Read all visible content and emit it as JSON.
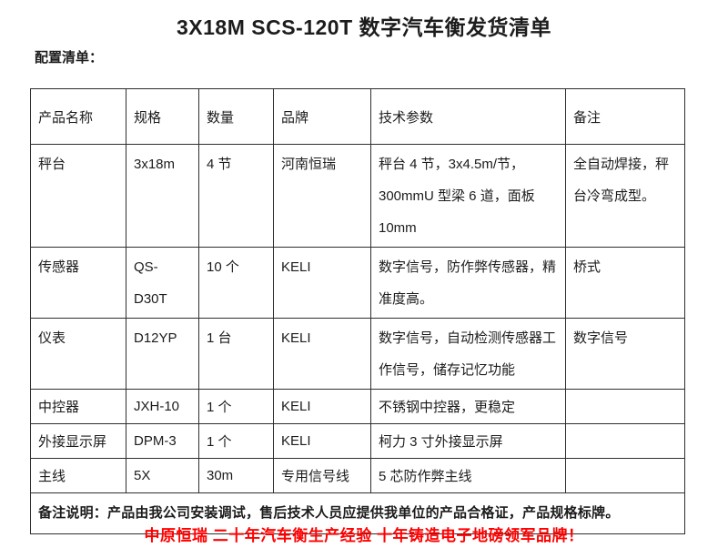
{
  "title": "3X18M SCS-120T 数字汽车衡发货清单",
  "subtitle": "配置清单：",
  "table": {
    "headers": {
      "name": "产品名称",
      "spec": "规格",
      "qty": "数量",
      "brand": "品牌",
      "tech": "技术参数",
      "note": "备注"
    },
    "rows": [
      {
        "name": "秤台",
        "spec": "3x18m",
        "qty": "4 节",
        "brand": "河南恒瑞",
        "tech": "秤台 4 节，3x4.5m/节，300mmU 型梁 6 道，面板 10mm",
        "note": "全自动焊接，秤台冷弯成型。"
      },
      {
        "name": "传感器",
        "spec": "QS-D30T",
        "qty": "10 个",
        "brand": "KELI",
        "tech": "数字信号，防作弊传感器，精准度高。",
        "note": "桥式"
      },
      {
        "name": "仪表",
        "spec": "D12YP",
        "qty": "1 台",
        "brand": "KELI",
        "tech": "数字信号，自动检测传感器工作信号，储存记忆功能",
        "note": "数字信号"
      },
      {
        "name": "中控器",
        "spec": "JXH-10",
        "qty": "1 个",
        "brand": "KELI",
        "tech": "不锈钢中控器，更稳定",
        "note": ""
      },
      {
        "name": "外接显示屏",
        "spec": "DPM-3",
        "qty": "1 个",
        "brand": "KELI",
        "tech": "柯力 3 寸外接显示屏",
        "note": ""
      },
      {
        "name": "主线",
        "spec": "5X",
        "qty": "30m",
        "brand": "专用信号线",
        "tech": "5 芯防作弊主线",
        "note": ""
      }
    ],
    "footer_note": "备注说明：产品由我公司安装调试，售后技术人员应提供我单位的产品合格证，产品规格标牌。"
  },
  "slogan": {
    "text": "中原恒瑞 二十年汽车衡生产经验 十年铸造电子地磅领军品牌！",
    "color": "#ff0000"
  },
  "colors": {
    "text": "#1c1c1c",
    "border": "#2e2e2e",
    "accent_red": "#ff0000",
    "background": "#ffffff"
  }
}
